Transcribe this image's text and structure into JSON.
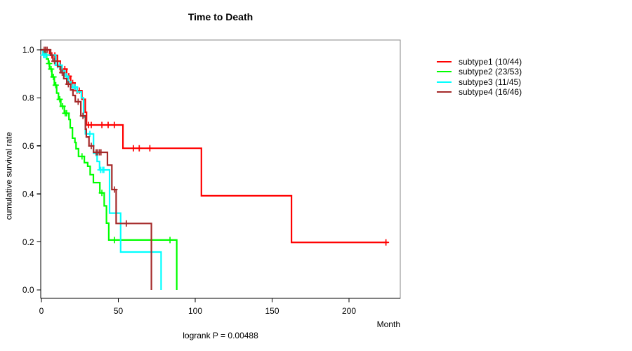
{
  "title": "Time to Death",
  "xlabel": "Month",
  "ylabel": "cumulative survival rate",
  "footnote": "logrank P = 0.00488",
  "chart_data": {
    "type": "line",
    "subtype": "kaplan-meier-step",
    "title": "Time to Death",
    "xlabel": "Month",
    "ylabel": "cumulative survival rate",
    "annotation": "logrank P = 0.00488",
    "xlim": [
      0,
      233
    ],
    "ylim": [
      0,
      1.04
    ],
    "x_ticks": [
      "0",
      "50",
      "100",
      "150",
      "200"
    ],
    "y_ticks": [
      "0.0",
      "0.2",
      "0.4",
      "0.6",
      "0.8",
      "1.0"
    ],
    "grid": false,
    "legend_position": "right-outside",
    "censor_marker": "+",
    "series": [
      {
        "name": "subtype1 (10/44)",
        "color": "#FF0000",
        "steps": [
          [
            0,
            1.0
          ],
          [
            5.3,
            0.977
          ],
          [
            10.4,
            0.953
          ],
          [
            12.3,
            0.92
          ],
          [
            16.4,
            0.89
          ],
          [
            19,
            0.862
          ],
          [
            21.8,
            0.83
          ],
          [
            26.3,
            0.794
          ],
          [
            28.5,
            0.74
          ],
          [
            29.3,
            0.687
          ],
          [
            53,
            0.59
          ],
          [
            104,
            0.392
          ],
          [
            162.6,
            0.198
          ]
        ],
        "end": 225,
        "censors": [
          [
            6.8,
            0.977
          ],
          [
            8.7,
            0.977
          ],
          [
            13.5,
            0.92
          ],
          [
            15.2,
            0.92
          ],
          [
            17.8,
            0.89
          ],
          [
            20.3,
            0.862
          ],
          [
            23.1,
            0.83
          ],
          [
            24.6,
            0.83
          ],
          [
            30.6,
            0.687
          ],
          [
            32.4,
            0.687
          ],
          [
            39.3,
            0.687
          ],
          [
            43.4,
            0.687
          ],
          [
            47.4,
            0.687
          ],
          [
            59.8,
            0.59
          ],
          [
            63.6,
            0.59
          ],
          [
            70.5,
            0.59
          ],
          [
            224,
            0.198
          ]
        ]
      },
      {
        "name": "subtype2 (23/53)",
        "color": "#00FF00",
        "steps": [
          [
            0,
            1.0
          ],
          [
            2.3,
            0.981
          ],
          [
            3.4,
            0.962
          ],
          [
            4.5,
            0.943
          ],
          [
            5.3,
            0.92
          ],
          [
            6.8,
            0.887
          ],
          [
            8.4,
            0.853
          ],
          [
            9.9,
            0.82
          ],
          [
            11.1,
            0.794
          ],
          [
            12.6,
            0.765
          ],
          [
            14.9,
            0.736
          ],
          [
            17.9,
            0.71
          ],
          [
            18.7,
            0.675
          ],
          [
            20.2,
            0.632
          ],
          [
            21.8,
            0.614
          ],
          [
            22.5,
            0.588
          ],
          [
            24.1,
            0.556
          ],
          [
            27.9,
            0.53
          ],
          [
            30.1,
            0.515
          ],
          [
            31.7,
            0.48
          ],
          [
            33.8,
            0.447
          ],
          [
            38,
            0.404
          ],
          [
            40.8,
            0.35
          ],
          [
            42.3,
            0.278
          ],
          [
            43.8,
            0.208
          ],
          [
            88,
            0
          ]
        ],
        "end": 88,
        "censors": [
          [
            5.0,
            0.943
          ],
          [
            6.3,
            0.92
          ],
          [
            7.8,
            0.887
          ],
          [
            9.3,
            0.853
          ],
          [
            11.9,
            0.794
          ],
          [
            13.8,
            0.765
          ],
          [
            15.5,
            0.736
          ],
          [
            16.4,
            0.736
          ],
          [
            26.4,
            0.556
          ],
          [
            39.3,
            0.404
          ],
          [
            47.5,
            0.208
          ],
          [
            83.6,
            0.208
          ]
        ]
      },
      {
        "name": "subtype3 (11/45)",
        "color": "#00FFFF",
        "steps": [
          [
            0,
            1.0
          ],
          [
            1.0,
            0.978
          ],
          [
            9.3,
            0.936
          ],
          [
            13.4,
            0.913
          ],
          [
            15.2,
            0.89
          ],
          [
            17.3,
            0.867
          ],
          [
            19.2,
            0.845
          ],
          [
            23.3,
            0.825
          ],
          [
            26,
            0.8
          ],
          [
            27.4,
            0.72
          ],
          [
            28.6,
            0.65
          ],
          [
            33.9,
            0.57
          ],
          [
            36.2,
            0.535
          ],
          [
            37.8,
            0.5
          ],
          [
            44.3,
            0.32
          ],
          [
            51.5,
            0.158
          ],
          [
            77.8,
            0
          ]
        ],
        "end": 77.8,
        "censors": [
          [
            1.4,
            0.978
          ],
          [
            2.3,
            0.978
          ],
          [
            3.2,
            0.978
          ],
          [
            10.5,
            0.936
          ],
          [
            11.9,
            0.936
          ],
          [
            16.2,
            0.89
          ],
          [
            20.5,
            0.845
          ],
          [
            21.9,
            0.845
          ],
          [
            31.5,
            0.65
          ],
          [
            35.6,
            0.57
          ],
          [
            38.4,
            0.5
          ],
          [
            39.5,
            0.5
          ],
          [
            40.6,
            0.5
          ]
        ]
      },
      {
        "name": "subtype4 (16/46)",
        "color": "#A52A2A",
        "steps": [
          [
            0,
            1.0
          ],
          [
            6,
            0.978
          ],
          [
            7.5,
            0.953
          ],
          [
            10.5,
            0.93
          ],
          [
            12.5,
            0.905
          ],
          [
            14.5,
            0.88
          ],
          [
            16.5,
            0.857
          ],
          [
            19,
            0.833
          ],
          [
            20.5,
            0.81
          ],
          [
            22,
            0.784
          ],
          [
            25.6,
            0.725
          ],
          [
            28.6,
            0.67
          ],
          [
            29.2,
            0.637
          ],
          [
            30.9,
            0.6
          ],
          [
            33.9,
            0.573
          ],
          [
            42.9,
            0.52
          ],
          [
            45.8,
            0.418
          ],
          [
            48.6,
            0.277
          ],
          [
            71.5,
            0
          ]
        ],
        "end": 71.5,
        "censors": [
          [
            1.8,
            1.0
          ],
          [
            2.7,
            1.0
          ],
          [
            3.7,
            1.0
          ],
          [
            8.5,
            0.953
          ],
          [
            13.5,
            0.905
          ],
          [
            17.5,
            0.857
          ],
          [
            23.9,
            0.784
          ],
          [
            27,
            0.725
          ],
          [
            32.4,
            0.6
          ],
          [
            35.6,
            0.573
          ],
          [
            36.6,
            0.573
          ],
          [
            37.7,
            0.573
          ],
          [
            38.7,
            0.573
          ],
          [
            47.5,
            0.418
          ],
          [
            55.2,
            0.277
          ]
        ]
      }
    ]
  }
}
